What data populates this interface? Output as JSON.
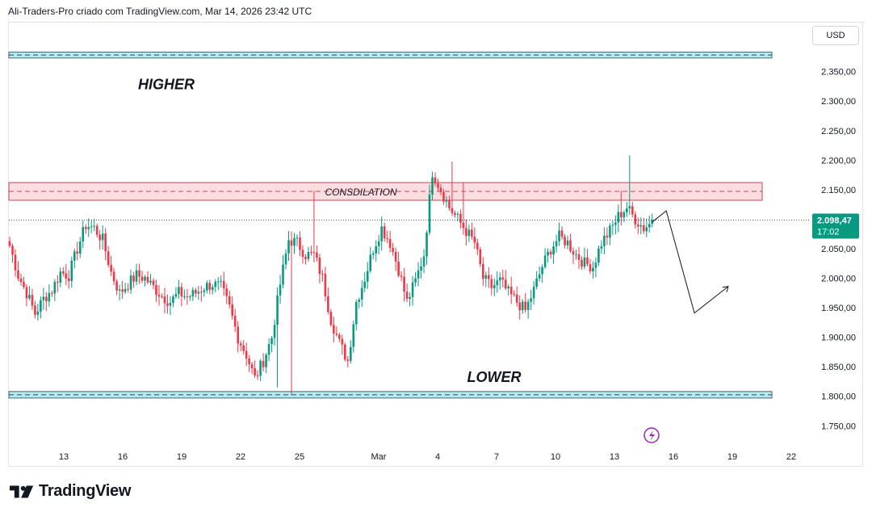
{
  "header": {
    "caption": "Ali-Traders-Pro criado com TradingView.com, Mar 14, 2026 23:42 UTC"
  },
  "currency_button": {
    "label": "USD"
  },
  "brand": {
    "name": "TradingView",
    "logo_icon": "tradingview-logo-icon"
  },
  "last_price": {
    "value": "2.098,47",
    "countdown": "17:02",
    "color": "#089981"
  },
  "colors": {
    "up": "#089981",
    "down": "#f23645",
    "zone_fill": "#b2ebf2",
    "zone_border": "#4a6670",
    "consolidation_fill": "#fcdde0",
    "consolidation_border": "#c24a55",
    "projection": "#131722",
    "lightning": "#9c27b0"
  },
  "chart_data": {
    "type": "candlestick",
    "y_axis": {
      "ticks": [
        2350,
        2300,
        2250,
        2200,
        2150,
        2100,
        2050,
        2000,
        1950,
        1900,
        1850,
        1800,
        1750
      ],
      "tick_labels": [
        "2.350,00",
        "2.300,00",
        "2.250,00",
        "2.200,00",
        "2.150,00",
        "2.100,00",
        "2.050,00",
        "2.000,00",
        "1.950,00",
        "1.900,00",
        "1.850,00",
        "1.800,00",
        "1.750,00"
      ]
    },
    "x_axis": {
      "ticks": [
        "13",
        "16",
        "19",
        "22",
        "25",
        "Mar",
        "4",
        "7",
        "10",
        "13",
        "16",
        "19",
        "22"
      ]
    },
    "zones": [
      {
        "name": "HIGHER",
        "low": 2373,
        "high": 2383,
        "style": "cyan"
      },
      {
        "name": "CONSDILATION",
        "low": 2132,
        "high": 2162,
        "style": "pink"
      },
      {
        "name": "LOWER",
        "low": 1797,
        "high": 1808,
        "style": "cyan"
      }
    ],
    "annotations": [
      {
        "text": "HIGHER"
      },
      {
        "text": "CONSDILATION"
      },
      {
        "text": "LOWER"
      }
    ],
    "last_price": 2098.47,
    "projection_path": [
      [
        2095,
        0
      ],
      [
        2114,
        5
      ],
      [
        1941,
        15
      ],
      [
        1986,
        27
      ]
    ],
    "anchors": [
      [
        0,
        2055
      ],
      [
        3,
        2005
      ],
      [
        6,
        1975
      ],
      [
        9,
        1940
      ],
      [
        12,
        1965
      ],
      [
        15,
        1980
      ],
      [
        18,
        2010
      ],
      [
        21,
        2005
      ],
      [
        24,
        2050
      ],
      [
        27,
        2090
      ],
      [
        30,
        2085
      ],
      [
        33,
        2065
      ],
      [
        36,
        2010
      ],
      [
        39,
        1975
      ],
      [
        42,
        1990
      ],
      [
        45,
        2005
      ],
      [
        48,
        2000
      ],
      [
        51,
        1985
      ],
      [
        54,
        1970
      ],
      [
        57,
        1960
      ],
      [
        60,
        1975
      ],
      [
        63,
        1968
      ],
      [
        66,
        1975
      ],
      [
        69,
        1985
      ],
      [
        72,
        1990
      ],
      [
        75,
        1985
      ],
      [
        78,
        1950
      ],
      [
        81,
        1900
      ],
      [
        84,
        1870
      ],
      [
        87,
        1830
      ],
      [
        90,
        1860
      ],
      [
        93,
        1900
      ],
      [
        96,
        1990
      ],
      [
        99,
        2065
      ],
      [
        102,
        2060
      ],
      [
        105,
        2040
      ],
      [
        108,
        2040
      ],
      [
        111,
        2000
      ],
      [
        114,
        1930
      ],
      [
        117,
        1890
      ],
      [
        120,
        1860
      ],
      [
        123,
        1960
      ],
      [
        126,
        2000
      ],
      [
        129,
        2050
      ],
      [
        132,
        2085
      ],
      [
        135,
        2060
      ],
      [
        138,
        2015
      ],
      [
        141,
        1960
      ],
      [
        144,
        1995
      ],
      [
        147,
        2040
      ],
      [
        150,
        2180
      ],
      [
        153,
        2150
      ],
      [
        156,
        2120
      ],
      [
        159,
        2100
      ],
      [
        162,
        2080
      ],
      [
        165,
        2060
      ],
      [
        168,
        2000
      ],
      [
        171,
        1985
      ],
      [
        174,
        1995
      ],
      [
        177,
        1975
      ],
      [
        180,
        1960
      ],
      [
        183,
        1945
      ],
      [
        186,
        1980
      ],
      [
        189,
        2020
      ],
      [
        192,
        2050
      ],
      [
        195,
        2070
      ],
      [
        198,
        2060
      ],
      [
        201,
        2040
      ],
      [
        204,
        2025
      ],
      [
        207,
        2020
      ],
      [
        210,
        2060
      ],
      [
        213,
        2080
      ],
      [
        216,
        2105
      ],
      [
        219,
        2120
      ],
      [
        222,
        2100
      ],
      [
        225,
        2085
      ],
      [
        228,
        2095
      ]
    ]
  }
}
